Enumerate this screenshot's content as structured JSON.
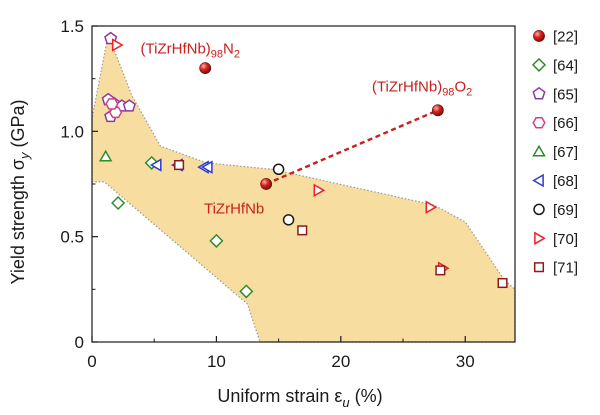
{
  "chart_data": {
    "type": "scatter",
    "xlabel": "Uniform strain ε",
    "xlabel_sub": "u",
    "xlabel_unit": " (%)",
    "ylabel": "Yield strength σ",
    "ylabel_sub": "y",
    "ylabel_unit": " (GPa)",
    "xlim": [
      0,
      34
    ],
    "ylim": [
      0,
      1.5
    ],
    "x_ticks": [
      0,
      10,
      20,
      30
    ],
    "y_ticks": [
      0,
      0.5,
      1.0,
      1.5
    ],
    "x_tick_labels": [
      "0",
      "10",
      "20",
      "30"
    ],
    "y_tick_labels": [
      "0",
      "0.5",
      "1.0",
      "1.5"
    ],
    "legend_position": "right",
    "shaded_region": {
      "fill": "#f7dda0",
      "border": "#9a9a9a",
      "points": [
        [
          1.3,
          1.46
        ],
        [
          3.2,
          1.17
        ],
        [
          5.5,
          0.93
        ],
        [
          9.2,
          0.85
        ],
        [
          14.5,
          0.82
        ],
        [
          27.5,
          0.65
        ],
        [
          30,
          0.57
        ],
        [
          33.2,
          0.29
        ],
        [
          34.2,
          0.25
        ],
        [
          34.2,
          0
        ],
        [
          13.5,
          0
        ],
        [
          12.5,
          0.18
        ],
        [
          1,
          0.76
        ],
        [
          0,
          0.76
        ],
        [
          0,
          1.06
        ]
      ]
    },
    "dashed_line": {
      "color": "#c8201c",
      "points": [
        [
          14,
          0.75
        ],
        [
          27.8,
          1.1
        ]
      ]
    },
    "series": [
      {
        "name": "[22]",
        "marker": "sphere",
        "color": "#c8201c",
        "points": [
          [
            9.1,
            1.3
          ],
          [
            27.8,
            1.1
          ],
          [
            14,
            0.75
          ]
        ]
      },
      {
        "name": "[64]",
        "marker": "diamond",
        "color": "#2e8b2e",
        "points": [
          [
            2.1,
            0.66
          ],
          [
            4.8,
            0.85
          ],
          [
            10,
            0.48
          ],
          [
            12.4,
            0.24
          ]
        ]
      },
      {
        "name": "[65]",
        "marker": "pentagon",
        "color": "#8b3aa0",
        "points": [
          [
            1.5,
            1.44
          ],
          [
            1.3,
            1.15
          ],
          [
            1.8,
            1.13
          ],
          [
            2.4,
            1.12
          ],
          [
            3,
            1.12
          ],
          [
            1.5,
            1.07
          ]
        ]
      },
      {
        "name": "[66]",
        "marker": "hexagon",
        "color": "#d0408a",
        "points": [
          [
            1.9,
            1.09
          ],
          [
            1.6,
            1.13
          ]
        ]
      },
      {
        "name": "[67]",
        "marker": "triangle-up",
        "color": "#2e8b2e",
        "points": [
          [
            1.1,
            0.88
          ]
        ]
      },
      {
        "name": "[68]",
        "marker": "triangle-left",
        "color": "#2a3cd6",
        "points": [
          [
            5.2,
            0.84
          ],
          [
            6.9,
            0.84
          ],
          [
            9,
            0.83
          ],
          [
            9.3,
            0.83
          ]
        ]
      },
      {
        "name": "[69]",
        "marker": "circle",
        "color": "#1a1a1a",
        "points": [
          [
            15,
            0.82
          ],
          [
            15.8,
            0.58
          ]
        ]
      },
      {
        "name": "[70]",
        "marker": "triangle-right",
        "color": "#e8232a",
        "points": [
          [
            2,
            1.41
          ],
          [
            18.2,
            0.72
          ],
          [
            27.2,
            0.64
          ],
          [
            28.2,
            0.35
          ]
        ]
      },
      {
        "name": "[71]",
        "marker": "square",
        "color": "#8b1c1c",
        "points": [
          [
            7,
            0.84
          ],
          [
            16.9,
            0.53
          ],
          [
            28,
            0.34
          ],
          [
            33,
            0.28
          ]
        ]
      }
    ],
    "annotations": [
      {
        "text": "(TiZrHfNb)",
        "sub": "98",
        "tail": "N",
        "tail_sub": "2",
        "x": 3.9,
        "y": 1.37
      },
      {
        "text": "(TiZrHfNb)",
        "sub": "98",
        "tail": "O",
        "tail_sub": "2",
        "x": 22.5,
        "y": 1.19
      },
      {
        "text": "TiZrHfNb",
        "sub": "",
        "tail": "",
        "tail_sub": "",
        "x": 9,
        "y": 0.61
      }
    ]
  }
}
